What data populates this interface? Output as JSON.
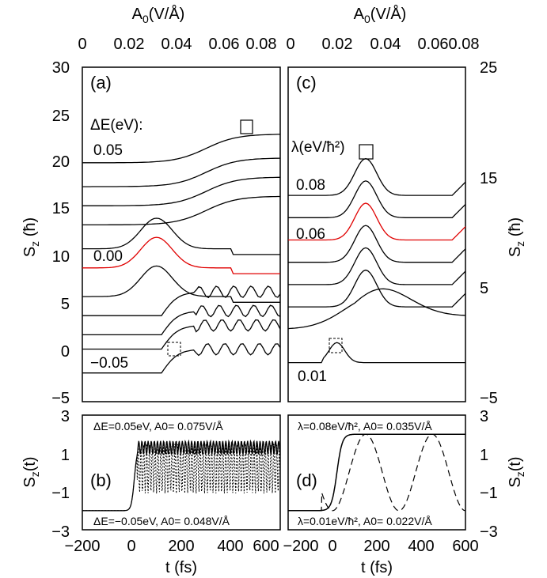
{
  "colors": {
    "axes": "#000000",
    "curve": "#000000",
    "highlight": "#e00000"
  },
  "top_axis": {
    "label": "A0(V/Å)",
    "ticks_left": [
      "0",
      "0.02",
      "0.04",
      "0.06",
      "0.08"
    ],
    "ticks_right": [
      "0",
      "0.02",
      "0.04",
      "0.06",
      "0.08"
    ]
  },
  "chart_data": [
    {
      "panel": "(a)",
      "type": "line",
      "xlabel_top": "A0(V/Å)",
      "ylabel": "Sz (ħ)",
      "xlim": [
        0,
        0.08
      ],
      "ylim": [
        -5,
        30
      ],
      "yticks": [
        -5,
        0,
        5,
        10,
        15,
        20,
        25,
        30
      ],
      "xticks": [
        0,
        0.02,
        0.04,
        0.06,
        0.08
      ],
      "annotations": [
        "ΔE(eV):",
        "0.05",
        "0.00",
        "−0.05"
      ],
      "curve_count": 11,
      "highlighted_curve": "0.00 (red)",
      "series_baselines": [
        -2,
        0.5,
        2,
        4,
        6,
        9,
        11,
        13.5,
        15.5,
        17.5,
        20
      ]
    },
    {
      "panel": "(c)",
      "type": "line",
      "xlabel_top": "A0(V/Å)",
      "ylabel": "Sz (ħ)",
      "xlim": [
        0,
        0.08
      ],
      "ylim": [
        -5,
        25
      ],
      "yticks": [
        -5,
        5,
        15,
        25
      ],
      "xticks": [
        0,
        0.02,
        0.04,
        0.06,
        0.08
      ],
      "annotations": [
        "λ(eV/ħ²)",
        "0.08",
        "0.06",
        "0.01"
      ],
      "curve_count": 8,
      "highlighted_curve": "0.06 (red)",
      "series_baselines": [
        -1.5,
        1.5,
        3.5,
        5.5,
        7.5,
        9.5,
        11.5,
        13.5
      ]
    },
    {
      "panel": "(b)",
      "type": "line",
      "xlabel": "t (fs)",
      "ylabel": "Sz(t)",
      "xlim": [
        -200,
        600
      ],
      "ylim": [
        -3,
        3
      ],
      "xticks": [
        -200,
        0,
        200,
        400,
        600
      ],
      "yticks": [
        -3,
        -1,
        1,
        3
      ],
      "series": [
        {
          "name": "ΔE=0.05eV, A0= 0.075V/Å",
          "style": "solid"
        },
        {
          "name": "ΔE=−0.05eV, A0= 0.048V/Å",
          "style": "dotted"
        }
      ]
    },
    {
      "panel": "(d)",
      "type": "line",
      "xlabel": "t (fs)",
      "ylabel": "Sz(t)",
      "xlim": [
        -200,
        600
      ],
      "ylim": [
        -3,
        3
      ],
      "xticks": [
        -200,
        0,
        200,
        400,
        600
      ],
      "yticks": [
        -3,
        -1,
        1,
        3
      ],
      "series": [
        {
          "name": "λ=0.08eV/ħ², A0= 0.035V/Å",
          "style": "solid"
        },
        {
          "name": "λ=0.01eV/ħ², A0= 0.022V/Å",
          "style": "dashed"
        }
      ]
    }
  ],
  "labels": {
    "a_panel": "(a)",
    "b_panel": "(b)",
    "c_panel": "(c)",
    "d_panel": "(d)",
    "a_dE": "ΔE(eV):",
    "a_top": "0.05",
    "a_mid": "0.00",
    "a_bot": "−0.05",
    "c_lam": "λ(eV/ħ²)",
    "c_top": "0.08",
    "c_mid": "0.06",
    "c_bot": "0.01",
    "b_top": "ΔE=0.05eV, A0= 0.075V/Å",
    "b_bot": "ΔE=−0.05eV, A0= 0.048V/Å",
    "d_top": "λ=0.08eV/ħ², A0= 0.035V/Å",
    "d_bot": "λ=0.01eV/ħ², A0= 0.022V/Å",
    "t_fs": "t (fs)",
    "sz_hbar": "Sz (ħ)",
    "sz_t": "Sz(t)"
  }
}
